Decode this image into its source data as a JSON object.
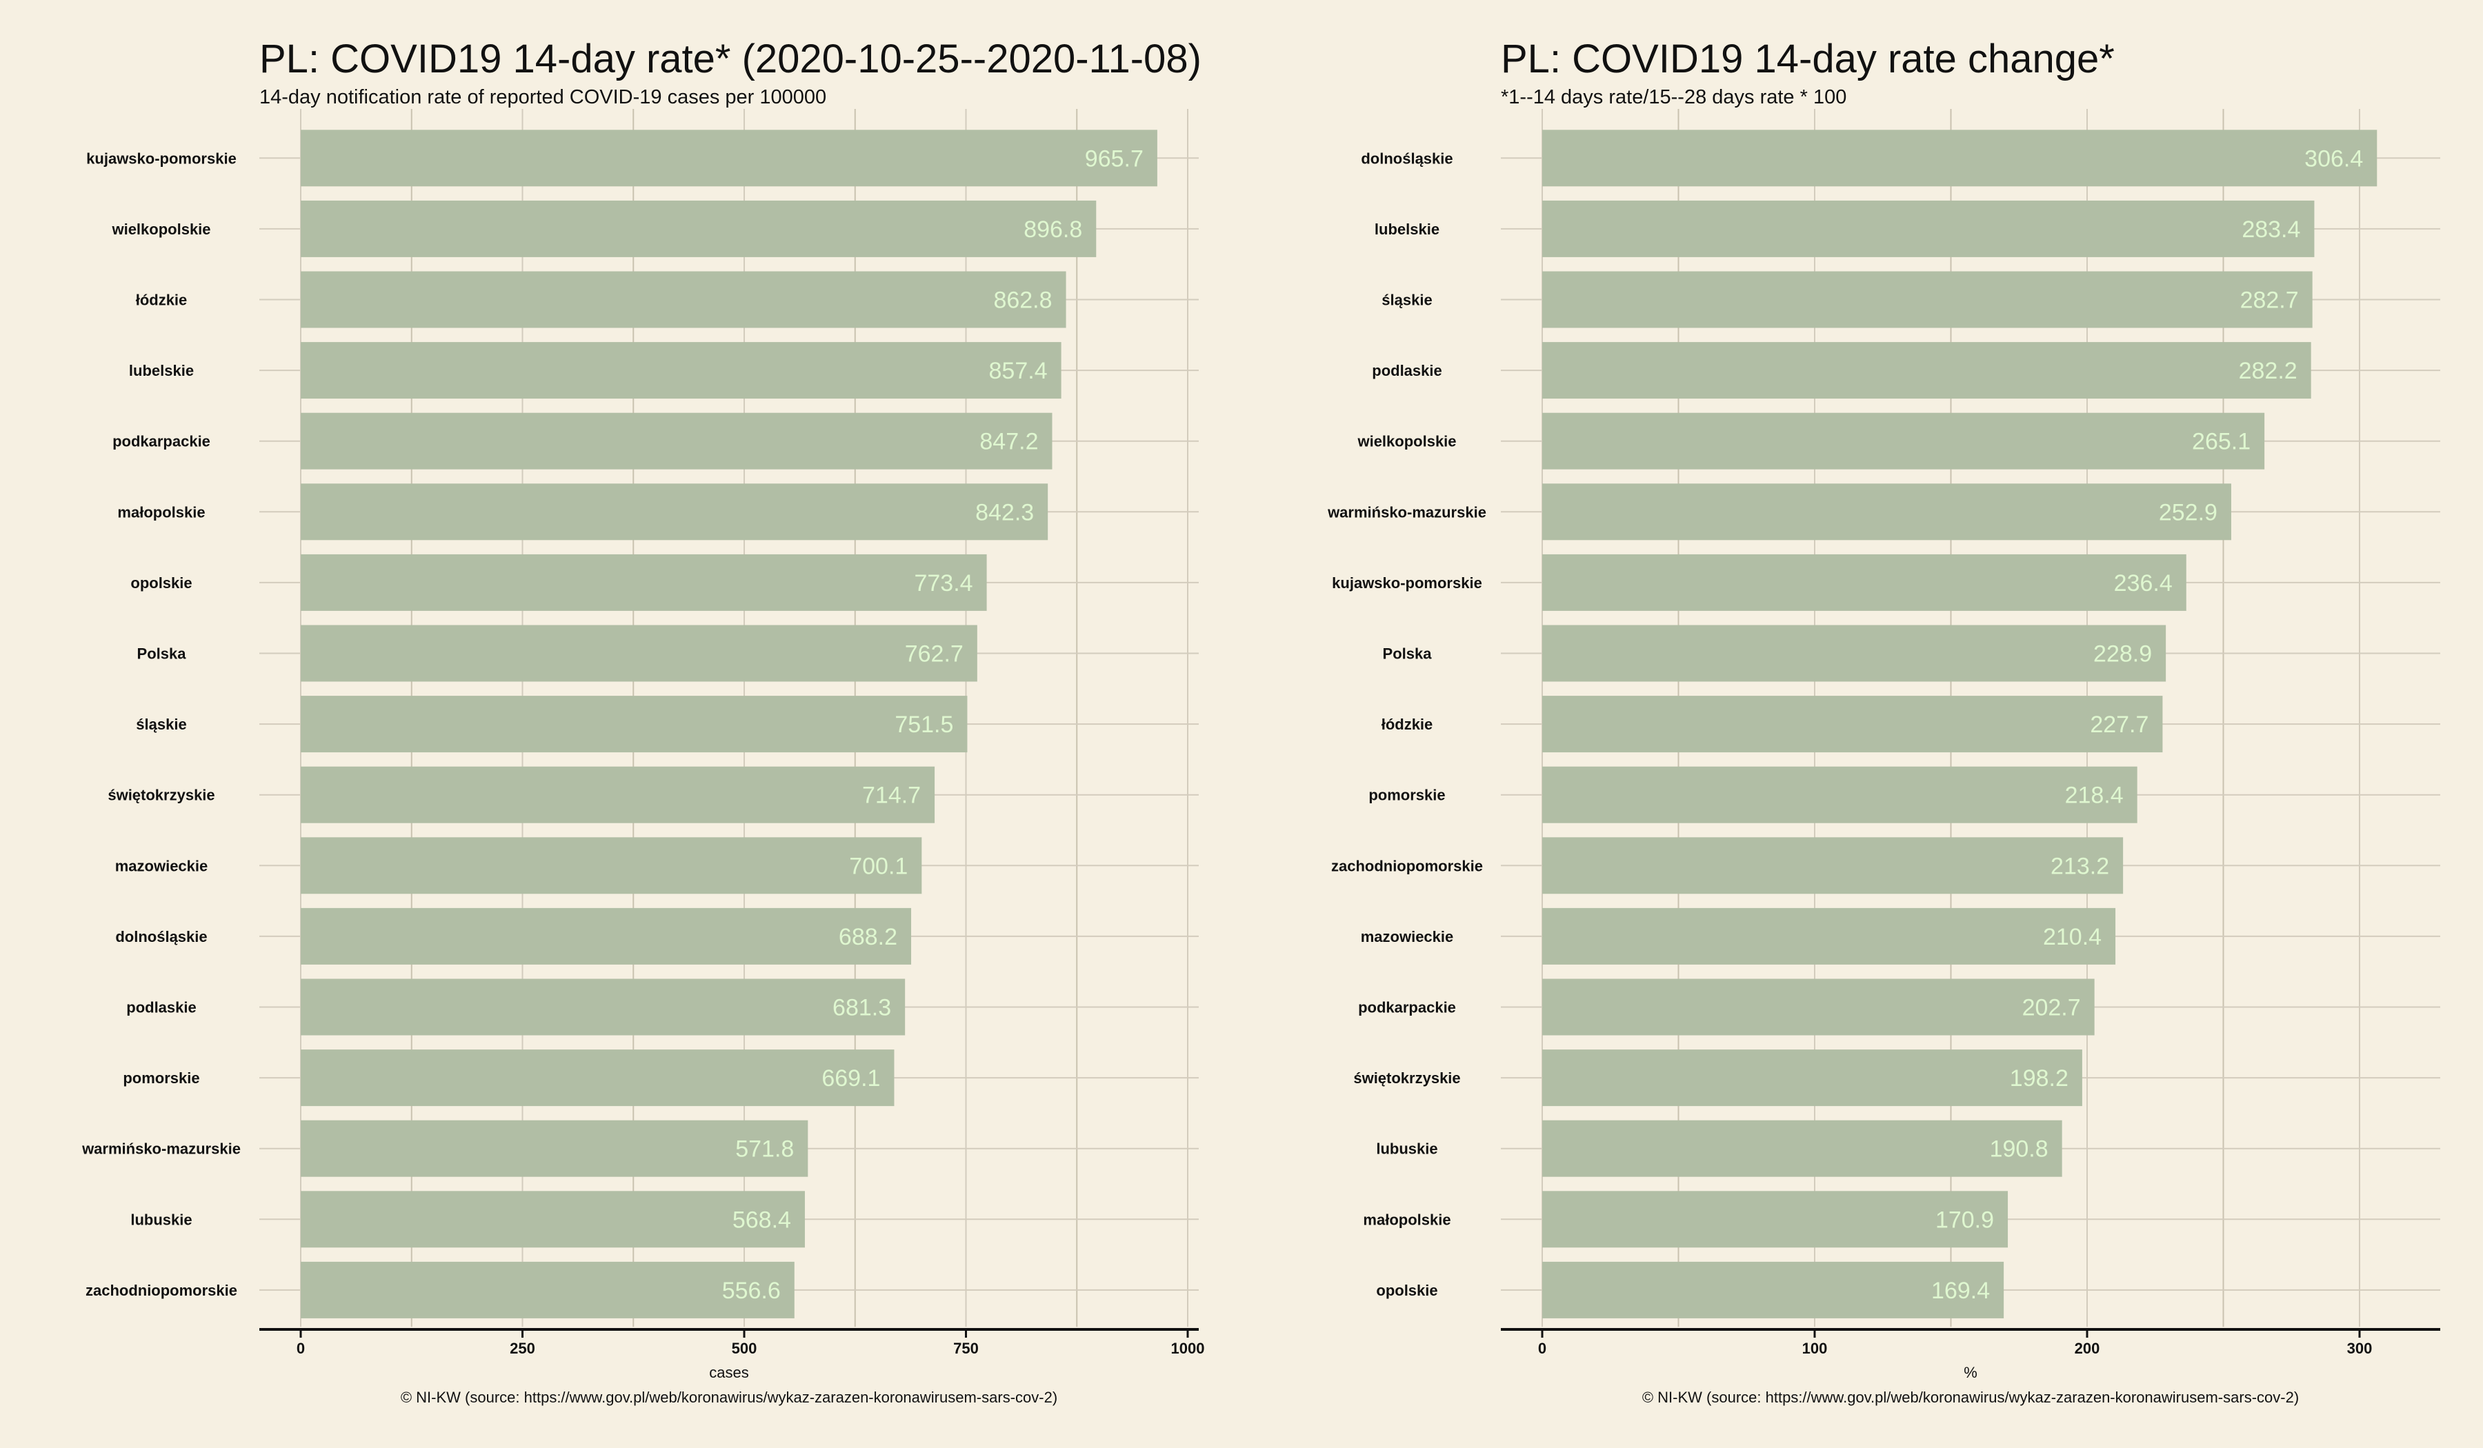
{
  "colors": {
    "background": "#f6f0e2",
    "bar": "#b1beA5",
    "bar_label": "#dff7d0",
    "grid_major": "#d3ccbd",
    "grid_minor": "#ddd6c6",
    "axis": "#111111"
  },
  "chart_data": [
    {
      "type": "bar",
      "orientation": "horizontal",
      "title": "PL: COVID19 14-day rate* (2020-10-25--2020-11-08)",
      "subtitle": "14-day notification rate of reported COVID-19 cases per 100000",
      "xlabel": "cases",
      "caption": "© NI-KW (source: https://www.gov.pl/web/koronawirus/wykaz-zarazen-koronawirusem-sars-cov-2)",
      "xlim": [
        0,
        1000
      ],
      "xticks": [
        0,
        250,
        500,
        750,
        1000
      ],
      "grid": true,
      "categories": [
        "kujawsko-pomorskie",
        "wielkopolskie",
        "łódzkie",
        "lubelskie",
        "podkarpackie",
        "małopolskie",
        "opolskie",
        "Polska",
        "śląskie",
        "świętokrzyskie",
        "mazowieckie",
        "dolnośląskie",
        "podlaskie",
        "pomorskie",
        "warmińsko-mazurskie",
        "lubuskie",
        "zachodniopomorskie"
      ],
      "values": [
        965.7,
        896.8,
        862.8,
        857.4,
        847.2,
        842.3,
        773.4,
        762.7,
        751.5,
        714.7,
        700.1,
        688.2,
        681.3,
        669.1,
        571.8,
        568.4,
        556.6
      ]
    },
    {
      "type": "bar",
      "orientation": "horizontal",
      "title": "PL: COVID19 14-day rate change*",
      "subtitle": "*1--14 days rate/15--28 days rate * 100",
      "xlabel": "%",
      "caption": "© NI-KW (source: https://www.gov.pl/web/koronawirus/wykaz-zarazen-koronawirusem-sars-cov-2)",
      "xlim": [
        0,
        320
      ],
      "xticks": [
        0,
        100,
        200,
        300
      ],
      "grid": true,
      "categories": [
        "dolnośląskie",
        "lubelskie",
        "śląskie",
        "podlaskie",
        "wielkopolskie",
        "warmińsko-mazurskie",
        "kujawsko-pomorskie",
        "Polska",
        "łódzkie",
        "pomorskie",
        "zachodniopomorskie",
        "mazowieckie",
        "podkarpackie",
        "świętokrzyskie",
        "lubuskie",
        "małopolskie",
        "opolskie"
      ],
      "values": [
        306.4,
        283.4,
        282.7,
        282.2,
        265.1,
        252.9,
        236.4,
        228.9,
        227.7,
        218.4,
        213.2,
        210.4,
        202.7,
        198.2,
        190.8,
        170.9,
        169.4
      ]
    }
  ]
}
